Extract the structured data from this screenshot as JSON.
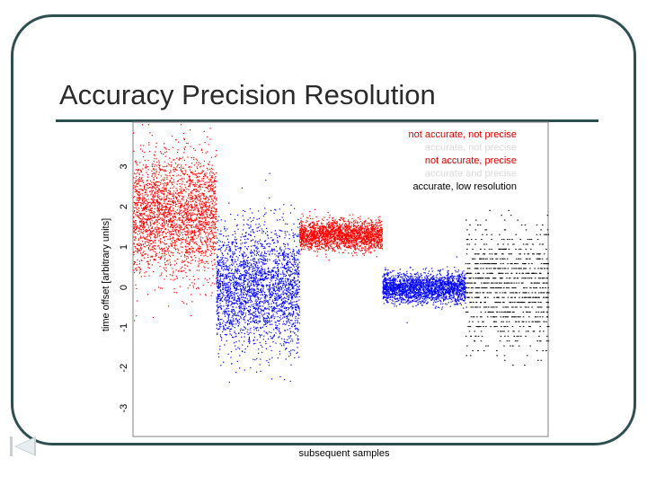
{
  "slide": {
    "title": "Accuracy Precision Resolution",
    "frame_color": "#2f4f4f"
  },
  "nav": {
    "icon": "previous-slide-icon"
  },
  "chart_data": {
    "type": "scatter",
    "title": "",
    "xlabel": "subsequent samples",
    "ylabel": "time offset [arbitrary units]",
    "ylim": [
      -3.7,
      4.1
    ],
    "yticks": [
      3,
      2,
      1,
      0,
      -1,
      -2,
      -3
    ],
    "ytick_labels": [
      "3",
      "2",
      "1",
      "0",
      "-1",
      "-2",
      "-3"
    ],
    "grid": false,
    "legend_position": "top-right",
    "series": [
      {
        "name": "not accurate, not precise",
        "color": "#ff0000",
        "mean": 1.8,
        "spread": 0.75,
        "x_range": [
          0,
          100
        ]
      },
      {
        "name": "accurate, not precise",
        "color": "#0000ff",
        "mean": 0.0,
        "spread": 0.75,
        "x_range": [
          100,
          200
        ]
      },
      {
        "name": "not accurate, precise",
        "color": "#ff0000",
        "mean": 1.3,
        "spread": 0.18,
        "x_range": [
          200,
          300
        ]
      },
      {
        "name": "accurate and precise",
        "color": "#0000ff",
        "mean": 0.0,
        "spread": 0.18,
        "x_range": [
          300,
          400
        ]
      },
      {
        "name": "accurate, low resolution",
        "color": "#000000",
        "mean": 0.0,
        "spread": 0.75,
        "x_range": [
          400,
          500
        ],
        "step": 0.12
      }
    ],
    "legend_text_colors": [
      "#d40000",
      "#d9d9d9",
      "#d40000",
      "#d9d9d9",
      "#000000"
    ]
  }
}
